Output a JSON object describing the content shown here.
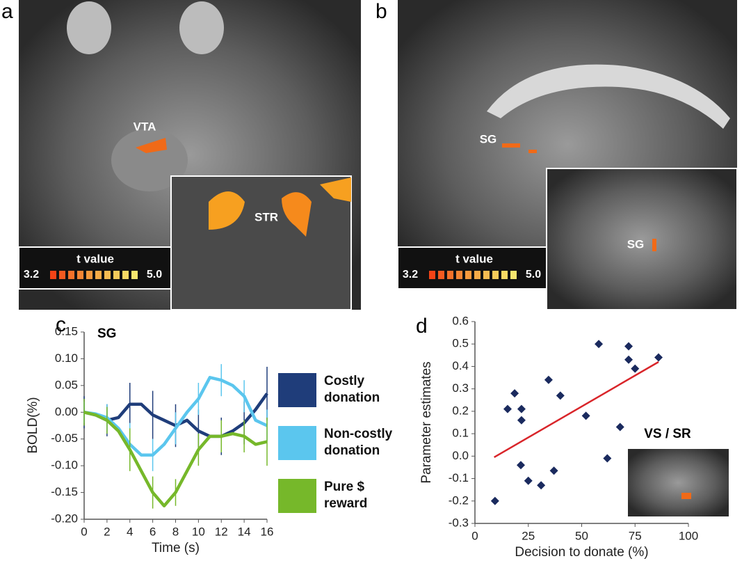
{
  "panels": [
    {
      "label": "a",
      "annotations": [
        "VTA",
        "STR"
      ],
      "colorbar": {
        "title": "t value",
        "ticks": [
          3.2,
          {
            "value": 5,
            "label": "5.0"
          }
        ]
      }
    },
    {
      "label": "b",
      "annotations": [
        "SG",
        "SG"
      ],
      "colorbar": {
        "title": "t value",
        "ticks": [
          3.2,
          {
            "value": 5,
            "label": "5.0"
          }
        ]
      }
    }
  ],
  "chart_data": [
    {
      "type": "line",
      "panel_label": "c",
      "title": "SG",
      "x_label": "Time (s)",
      "y_label": "BOLD(%)",
      "x": [
        0,
        1,
        2,
        3,
        4,
        5,
        6,
        7,
        8,
        9,
        10,
        11,
        12,
        13,
        14,
        15,
        16
      ],
      "xlim": [
        0,
        16
      ],
      "xticks": [
        0,
        2,
        4,
        6,
        8,
        10,
        12,
        14,
        16
      ],
      "ylim": [
        -0.2,
        0.15
      ],
      "yticks": [
        0.15,
        {
          "value": 0.1,
          "label": "0.10"
        },
        0.05,
        {
          "value": 0,
          "label": "0.00"
        },
        -0.05,
        {
          "value": -0.1,
          "label": "-0.10"
        },
        -0.15,
        {
          "value": -0.2,
          "label": "-0.20"
        }
      ],
      "legend": "right",
      "series": [
        {
          "name": "Costly donation",
          "color": "#1f3d7a",
          "values": [
            0,
            -0.005,
            -0.015,
            -0.01,
            0.015,
            0.015,
            -0.005,
            -0.015,
            -0.025,
            -0.015,
            -0.035,
            -0.045,
            -0.045,
            -0.035,
            -0.02,
            0.005,
            0.035
          ],
          "errors": [
            0.03,
            null,
            0.03,
            null,
            0.04,
            null,
            0.045,
            null,
            0.04,
            null,
            0.04,
            null,
            0.035,
            null,
            0.04,
            null,
            0.05
          ]
        },
        {
          "name": "Non-costly donation",
          "color": "#5bc6ee",
          "values": [
            0,
            -0.003,
            -0.01,
            -0.03,
            -0.06,
            -0.08,
            -0.08,
            -0.06,
            -0.03,
            0,
            0.025,
            0.065,
            0.06,
            0.05,
            0.03,
            -0.015,
            -0.025
          ],
          "errors": [
            0.02,
            null,
            0.025,
            null,
            0.04,
            null,
            0.03,
            null,
            0.03,
            null,
            0.03,
            null,
            0.03,
            null,
            0.03,
            null,
            0.03
          ]
        },
        {
          "name": "Pure $ reward",
          "color": "#76b82a",
          "values": [
            0,
            -0.005,
            -0.015,
            -0.035,
            -0.07,
            -0.11,
            -0.15,
            -0.175,
            -0.15,
            -0.11,
            -0.07,
            -0.045,
            -0.045,
            -0.04,
            -0.045,
            -0.06,
            -0.055
          ],
          "errors": [
            0.025,
            null,
            0.025,
            null,
            0.04,
            null,
            0.03,
            null,
            0.025,
            null,
            0.03,
            null,
            0.03,
            null,
            0.03,
            null,
            0.045
          ]
        }
      ]
    },
    {
      "type": "scatter",
      "panel_label": "d",
      "annotation": "VS / SR",
      "x_label": "Decision to donate (%)",
      "y_label": "Parameter estimates",
      "xlim": [
        0,
        100
      ],
      "xticks": [
        0,
        25,
        50,
        75,
        100
      ],
      "ylim": [
        -0.3,
        0.6
      ],
      "yticks": [
        0.6,
        0.5,
        0.4,
        0.3,
        0.2,
        0.1,
        {
          "value": 0,
          "label": "0.0"
        },
        -0.1,
        -0.2,
        -0.3
      ],
      "color": "#1a2a5e",
      "x": [
        9.4,
        15.3,
        18.6,
        21.8,
        21.8,
        21.5,
        25,
        31,
        34.5,
        37,
        40,
        52,
        58,
        62,
        68,
        72,
        72,
        75,
        86
      ],
      "y": [
        -0.2,
        0.21,
        0.28,
        0.21,
        0.16,
        -0.04,
        -0.11,
        -0.13,
        0.34,
        -0.065,
        0.27,
        0.18,
        0.5,
        -0.01,
        0.13,
        0.49,
        0.43,
        0.39,
        0.44
      ],
      "fit": {
        "x": [
          9,
          86
        ],
        "y": [
          -0.005,
          0.42
        ],
        "color": "#d9252a"
      }
    }
  ]
}
